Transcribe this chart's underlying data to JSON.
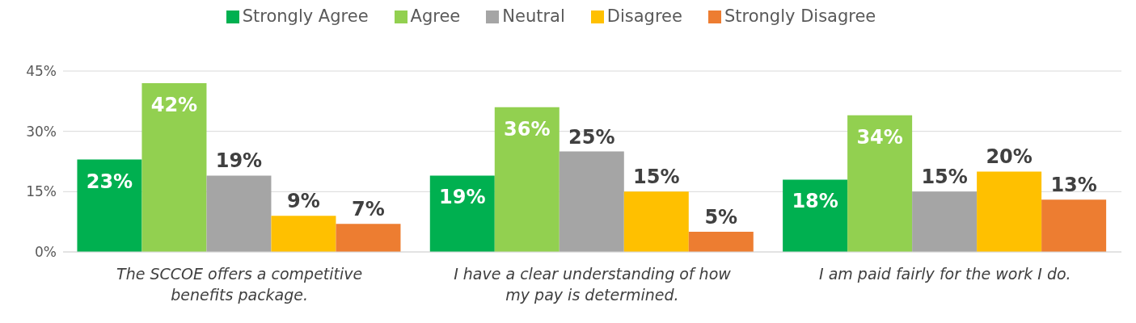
{
  "chart_data": {
    "type": "bar",
    "categories": [
      "The SCCOE offers a competitive benefits package.",
      "I have a clear understanding of how my pay is determined.",
      "I am paid fairly for the work I do."
    ],
    "series": [
      {
        "name": "Strongly Agree",
        "color": "#00b050",
        "values": [
          23,
          19,
          18
        ],
        "value_labels": [
          "23%",
          "19%",
          "18%"
        ]
      },
      {
        "name": "Agree",
        "color": "#92d050",
        "values": [
          42,
          36,
          34
        ],
        "value_labels": [
          "42%",
          "36%",
          "34%"
        ]
      },
      {
        "name": "Neutral",
        "color": "#a5a5a5",
        "values": [
          19,
          25,
          15
        ],
        "value_labels": [
          "19%",
          "25%",
          "15%"
        ]
      },
      {
        "name": "Disagree",
        "color": "#ffc000",
        "values": [
          9,
          15,
          20
        ],
        "value_labels": [
          "9%",
          "15%",
          "20%"
        ]
      },
      {
        "name": "Strongly Disagree",
        "color": "#ed7d31",
        "values": [
          7,
          5,
          13
        ],
        "value_labels": [
          "7%",
          "5%",
          "13%"
        ]
      }
    ],
    "ylim": [
      0,
      45
    ],
    "yticks": [
      {
        "value": 0,
        "label": "0%"
      },
      {
        "value": 15,
        "label": "15%"
      },
      {
        "value": 30,
        "label": "30%"
      },
      {
        "value": 45,
        "label": "45%"
      }
    ],
    "grid": "y",
    "legend": "top"
  }
}
